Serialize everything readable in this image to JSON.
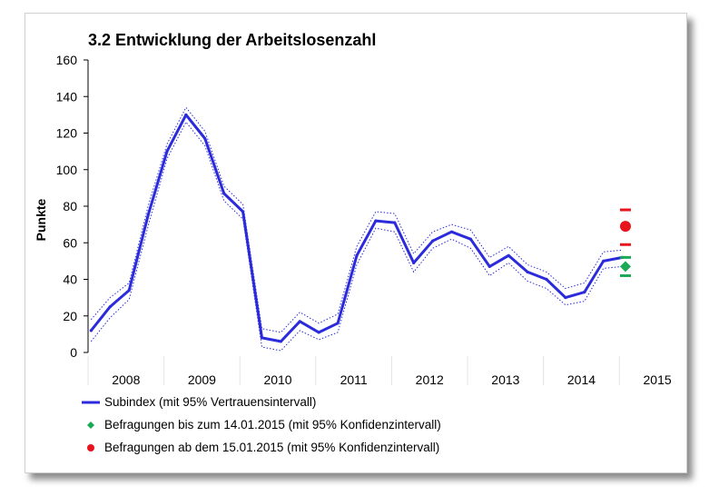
{
  "chart_data": {
    "type": "line",
    "title": "3.2 Entwicklung der Arbeitslosenzahl",
    "ylabel": "Punkte",
    "xlabel": "",
    "ylim": [
      0,
      160
    ],
    "yticks": [
      "0",
      "20",
      "40",
      "60",
      "80",
      "100",
      "120",
      "140",
      "160"
    ],
    "xticks": [
      {
        "label": "2008",
        "x": 2008.5
      },
      {
        "label": "2009",
        "x": 2009.5
      },
      {
        "label": "2010",
        "x": 2010.5
      },
      {
        "label": "2011",
        "x": 2011.5
      },
      {
        "label": "2012",
        "x": 2012.5
      },
      {
        "label": "2013",
        "x": 2013.5
      },
      {
        "label": "2014",
        "x": 2014.5
      },
      {
        "label": "2015",
        "x": 2015.5
      }
    ],
    "xlim": [
      2008,
      2015.75
    ],
    "grid": false,
    "legend_position": "bottom",
    "series": [
      {
        "name": "Subindex (mit 95% Vertrauensintervall)",
        "color": "#2b2bdb",
        "x": [
          2008.04,
          2008.29,
          2008.54,
          2008.79,
          2009.04,
          2009.29,
          2009.54,
          2009.79,
          2010.04,
          2010.29,
          2010.54,
          2010.79,
          2011.04,
          2011.29,
          2011.54,
          2011.79,
          2012.04,
          2012.29,
          2012.54,
          2012.79,
          2013.04,
          2013.29,
          2013.54,
          2013.79,
          2014.04,
          2014.29,
          2014.54,
          2014.79,
          2015.04
        ],
        "values": [
          12,
          25,
          34,
          75,
          110,
          130,
          117,
          87,
          77,
          8,
          6,
          17,
          11,
          16,
          53,
          72,
          71,
          49,
          61,
          66,
          62,
          47,
          53,
          44,
          40,
          30,
          33,
          50,
          52
        ],
        "lower": [
          6,
          19,
          29,
          69,
          106,
          126,
          113,
          83,
          73,
          3,
          1,
          12,
          7,
          11,
          48,
          68,
          66,
          44,
          57,
          62,
          57,
          42,
          49,
          39,
          35,
          26,
          28,
          46,
          47
        ],
        "upper": [
          18,
          30,
          38,
          80,
          114,
          134,
          121,
          91,
          81,
          13,
          11,
          22,
          16,
          21,
          58,
          77,
          76,
          54,
          66,
          70,
          67,
          52,
          58,
          48,
          44,
          35,
          38,
          55,
          56
        ]
      },
      {
        "name": "Befragungen bis zum 14.01.2015 (mit 95% Konfidenzintervall)",
        "color": "#1aaa55",
        "marker": "diamond",
        "x": [
          2015.08
        ],
        "values": [
          47
        ],
        "lower": [
          42
        ],
        "upper": [
          52
        ]
      },
      {
        "name": "Befragungen ab dem 15.01.2015 (mit 95% Konfidenzintervall)",
        "color": "#e8141c",
        "marker": "circle",
        "x": [
          2015.08
        ],
        "values": [
          69
        ],
        "lower": [
          59
        ],
        "upper": [
          78
        ]
      }
    ]
  }
}
